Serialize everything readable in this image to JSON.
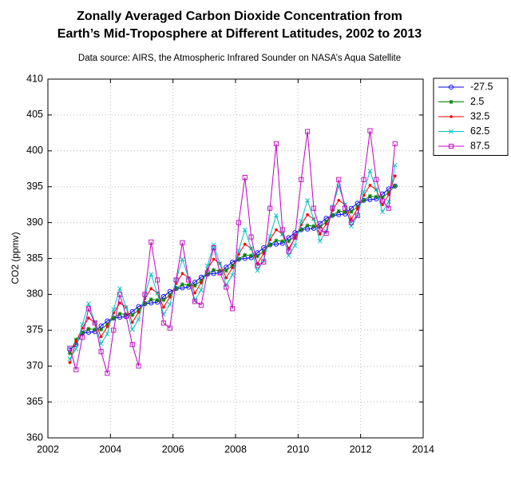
{
  "chart_data": {
    "type": "line",
    "title": [
      "Zonally Averaged Carbon Dioxide Concentration from",
      "Earth’s Mid-Troposphere at Different Latitudes, 2002 to 2013"
    ],
    "subtitle": "Data source: AIRS, the Atmospheric Infrared Sounder on NASA’s Aqua Satellite",
    "y_label": "CO2 (ppmv)",
    "x": [
      2002.7,
      2002.9,
      2003.1,
      2003.3,
      2003.5,
      2003.7,
      2003.9,
      2004.1,
      2004.3,
      2004.5,
      2004.7,
      2004.9,
      2005.1,
      2005.3,
      2005.5,
      2005.7,
      2005.9,
      2006.1,
      2006.3,
      2006.5,
      2006.7,
      2006.9,
      2007.1,
      2007.3,
      2007.5,
      2007.7,
      2007.9,
      2008.1,
      2008.3,
      2008.5,
      2008.7,
      2008.9,
      2009.1,
      2009.3,
      2009.5,
      2009.7,
      2009.9,
      2010.1,
      2010.3,
      2010.5,
      2010.7,
      2010.9,
      2011.1,
      2011.3,
      2011.5,
      2011.7,
      2011.9,
      2012.1,
      2012.3,
      2012.5,
      2012.7,
      2012.9,
      2013.1
    ],
    "series": [
      {
        "name": "-27.5",
        "color": "#0000ff",
        "marker": "circle",
        "values": [
          372.3,
          373.0,
          374.6,
          374.7,
          374.8,
          375.6,
          376.3,
          376.7,
          376.8,
          376.9,
          377.6,
          378.3,
          378.7,
          378.8,
          378.9,
          379.7,
          380.4,
          380.8,
          380.9,
          381.0,
          381.7,
          382.4,
          382.8,
          382.9,
          383.0,
          383.8,
          384.5,
          384.9,
          385.0,
          385.1,
          385.8,
          386.5,
          386.9,
          387.0,
          387.1,
          387.9,
          388.6,
          389.0,
          389.1,
          389.2,
          389.9,
          390.6,
          391.0,
          391.1,
          391.2,
          392.0,
          392.7,
          393.1,
          393.2,
          393.3,
          394.0,
          394.7,
          395.1
        ]
      },
      {
        "name": "2.5",
        "color": "#008000",
        "marker": "star",
        "values": [
          371.8,
          373.7,
          374.6,
          375.2,
          375.1,
          375.1,
          375.8,
          376.7,
          377.3,
          377.2,
          377.1,
          377.8,
          378.7,
          379.3,
          379.2,
          379.2,
          379.9,
          380.8,
          381.4,
          381.3,
          381.2,
          381.9,
          382.8,
          383.4,
          383.3,
          383.3,
          384.0,
          384.9,
          385.5,
          385.4,
          385.3,
          386.0,
          386.9,
          387.5,
          387.4,
          387.4,
          388.1,
          389.0,
          389.6,
          389.5,
          389.4,
          390.1,
          391.0,
          391.6,
          391.5,
          391.5,
          392.2,
          393.1,
          393.7,
          393.6,
          393.5,
          394.2,
          395.1
        ]
      },
      {
        "name": "32.5",
        "color": "#ff0000",
        "marker": "dot",
        "values": [
          370.5,
          373.4,
          375.3,
          376.7,
          376.1,
          374.1,
          375.5,
          377.4,
          378.8,
          378.2,
          376.1,
          377.5,
          379.4,
          380.8,
          380.2,
          378.2,
          379.6,
          381.5,
          382.9,
          382.3,
          380.2,
          381.6,
          383.5,
          384.9,
          384.3,
          382.3,
          383.7,
          385.6,
          387.0,
          386.4,
          384.3,
          385.7,
          387.6,
          389.0,
          388.4,
          386.4,
          387.8,
          389.7,
          391.1,
          390.5,
          388.4,
          389.8,
          391.7,
          393.1,
          392.5,
          390.5,
          391.9,
          393.8,
          395.2,
          394.6,
          392.5,
          393.9,
          396.5
        ]
      },
      {
        "name": "62.5",
        "color": "#00c0c0",
        "marker": "cross",
        "values": [
          371.0,
          372.4,
          375.8,
          378.7,
          376.1,
          373.1,
          374.5,
          377.9,
          380.8,
          378.2,
          375.1,
          376.5,
          379.9,
          382.8,
          380.1,
          377.2,
          378.6,
          382.0,
          384.9,
          382.3,
          379.2,
          380.6,
          384.0,
          386.9,
          384.3,
          381.3,
          382.7,
          386.1,
          389.0,
          386.4,
          383.3,
          384.7,
          388.1,
          391.0,
          388.4,
          385.4,
          386.8,
          390.2,
          393.1,
          390.5,
          387.4,
          388.8,
          392.2,
          395.1,
          392.5,
          389.5,
          390.9,
          394.3,
          397.2,
          394.6,
          391.5,
          392.9,
          398.0
        ]
      },
      {
        "name": "87.5",
        "color": "#c000c0",
        "marker": "square",
        "values": [
          372.5,
          369.5,
          374.0,
          378.0,
          376.0,
          372.0,
          369.0,
          375.0,
          380.0,
          377.0,
          373.0,
          370.0,
          380.0,
          387.3,
          382.0,
          376.0,
          375.3,
          382.0,
          387.2,
          382.0,
          379.0,
          378.5,
          383.0,
          386.5,
          383.0,
          381.0,
          378.0,
          390.0,
          396.3,
          388.0,
          384.0,
          384.5,
          392.0,
          401.0,
          389.0,
          386.0,
          388.0,
          396.0,
          402.7,
          392.0,
          389.0,
          388.5,
          392.0,
          396.0,
          392.0,
          390.0,
          391.0,
          396.0,
          402.8,
          396.0,
          393.0,
          392.0,
          401.0
        ]
      }
    ],
    "xlim": [
      2002,
      2014
    ],
    "xticks": [
      2002,
      2004,
      2006,
      2008,
      2010,
      2012,
      2014
    ],
    "ylim": [
      360,
      410
    ],
    "yticks": [
      360,
      365,
      370,
      375,
      380,
      385,
      390,
      395,
      400,
      405,
      410
    ],
    "grid": true,
    "legend": "outside-right"
  }
}
